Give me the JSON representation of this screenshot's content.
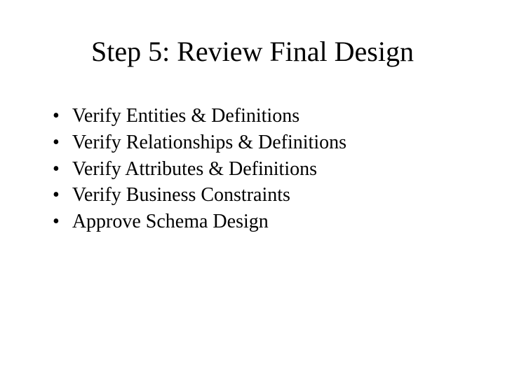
{
  "slide": {
    "title": "Step 5: Review Final Design",
    "title_fontsize": 40,
    "bullet_fontsize": 28,
    "background_color": "#ffffff",
    "text_color": "#000000",
    "font_family": "Times New Roman",
    "bullets": [
      "Verify Entities & Definitions",
      "Verify Relationships & Definitions",
      "Verify Attributes & Definitions",
      "Verify Business Constraints",
      "Approve Schema Design"
    ]
  }
}
